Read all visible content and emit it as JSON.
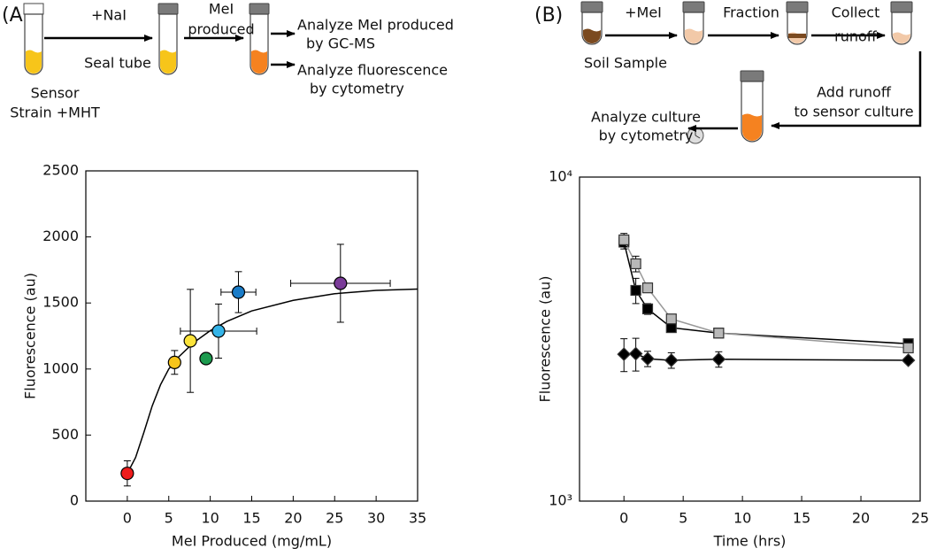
{
  "diagram_a": {
    "panel_label": "(A)",
    "step1": "+NaI",
    "step1_below": "Seal tube",
    "step2": [
      "MeI",
      "produced"
    ],
    "start": [
      "Sensor",
      "Strain +MHT"
    ],
    "out1": [
      "Analyze MeI produced",
      "by GC-MS"
    ],
    "out2": [
      "Analyze fluorescence",
      "by cytometry"
    ]
  },
  "diagram_b": {
    "panel_label": "(B)",
    "step1": "+MeI",
    "start": "Soil Sample",
    "step2": "Fraction",
    "step3": [
      "Collect",
      "runoff"
    ],
    "step4": [
      "Add runoff",
      "to sensor culture"
    ],
    "out": [
      "Analyze culture",
      "by cytometry"
    ]
  },
  "chart_data": [
    {
      "type": "scatter",
      "x_label": "MeI Produced (mg/mL)",
      "y_label": "Fluorescence (au)",
      "xlim": [
        -5,
        35
      ],
      "ylim": [
        0,
        2500
      ],
      "xticks": [
        0,
        5,
        10,
        15,
        20,
        25,
        30,
        35
      ],
      "yticks": [
        0,
        500,
        1000,
        1500,
        2000,
        2500
      ],
      "points": {
        "x": [
          0,
          5.7,
          7.6,
          9.5,
          11.0,
          13.4,
          25.7
        ],
        "values": [
          210,
          1050,
          1213,
          1079,
          1287,
          1582,
          1649
        ],
        "xerr": [
          0,
          0.5,
          0,
          0.6,
          4.6,
          2.1,
          6
        ],
        "yerr": [
          95,
          90,
          390,
          20,
          205,
          155,
          295
        ],
        "colors": [
          "#ee1c1c",
          "#f7c51a",
          "#fbe33a",
          "#1c9a4e",
          "#35b4e8",
          "#1a7cc8",
          "#7a3b98"
        ]
      },
      "fit": {
        "color": "#000000",
        "x": [
          0,
          1,
          2,
          3,
          4,
          5,
          6,
          8,
          10,
          12,
          15,
          20,
          25,
          30,
          35
        ],
        "values": [
          210,
          330,
          520,
          720,
          880,
          1000,
          1080,
          1200,
          1290,
          1360,
          1440,
          1520,
          1570,
          1595,
          1605
        ]
      }
    },
    {
      "type": "line",
      "x_label": "Time (hrs)",
      "y_label": "Fluorescence (au)",
      "log_y": true,
      "xlim": [
        -3.75,
        25
      ],
      "ylim": [
        1000,
        10000
      ],
      "xticks": [
        0,
        5,
        10,
        15,
        20,
        25
      ],
      "yticks": [
        {
          "value": 1000,
          "label": "10³"
        },
        {
          "value": 10000,
          "label": "10⁴"
        }
      ],
      "x": [
        0,
        1,
        2,
        4,
        8,
        24
      ],
      "series": [
        {
          "marker": "diamond",
          "color": "#000000",
          "fill": "#000000",
          "values": [
            2840,
            2850,
            2750,
            2720,
            2740,
            2720
          ],
          "yerr": [
            330,
            330,
            150,
            150,
            150,
            60
          ]
        },
        {
          "marker": "square",
          "color": "#000000",
          "fill": "#000000",
          "values": [
            6300,
            4470,
            3920,
            3430,
            3300,
            3060
          ],
          "yerr": [
            300,
            400,
            150,
            80,
            80,
            80
          ]
        },
        {
          "marker": "square",
          "color": "#999999",
          "fill": "#b8b8b8",
          "values": [
            6400,
            5400,
            4550,
            3650,
            3300,
            2970
          ],
          "yerr": [
            300,
            300,
            100,
            60,
            60,
            60
          ]
        }
      ]
    }
  ]
}
